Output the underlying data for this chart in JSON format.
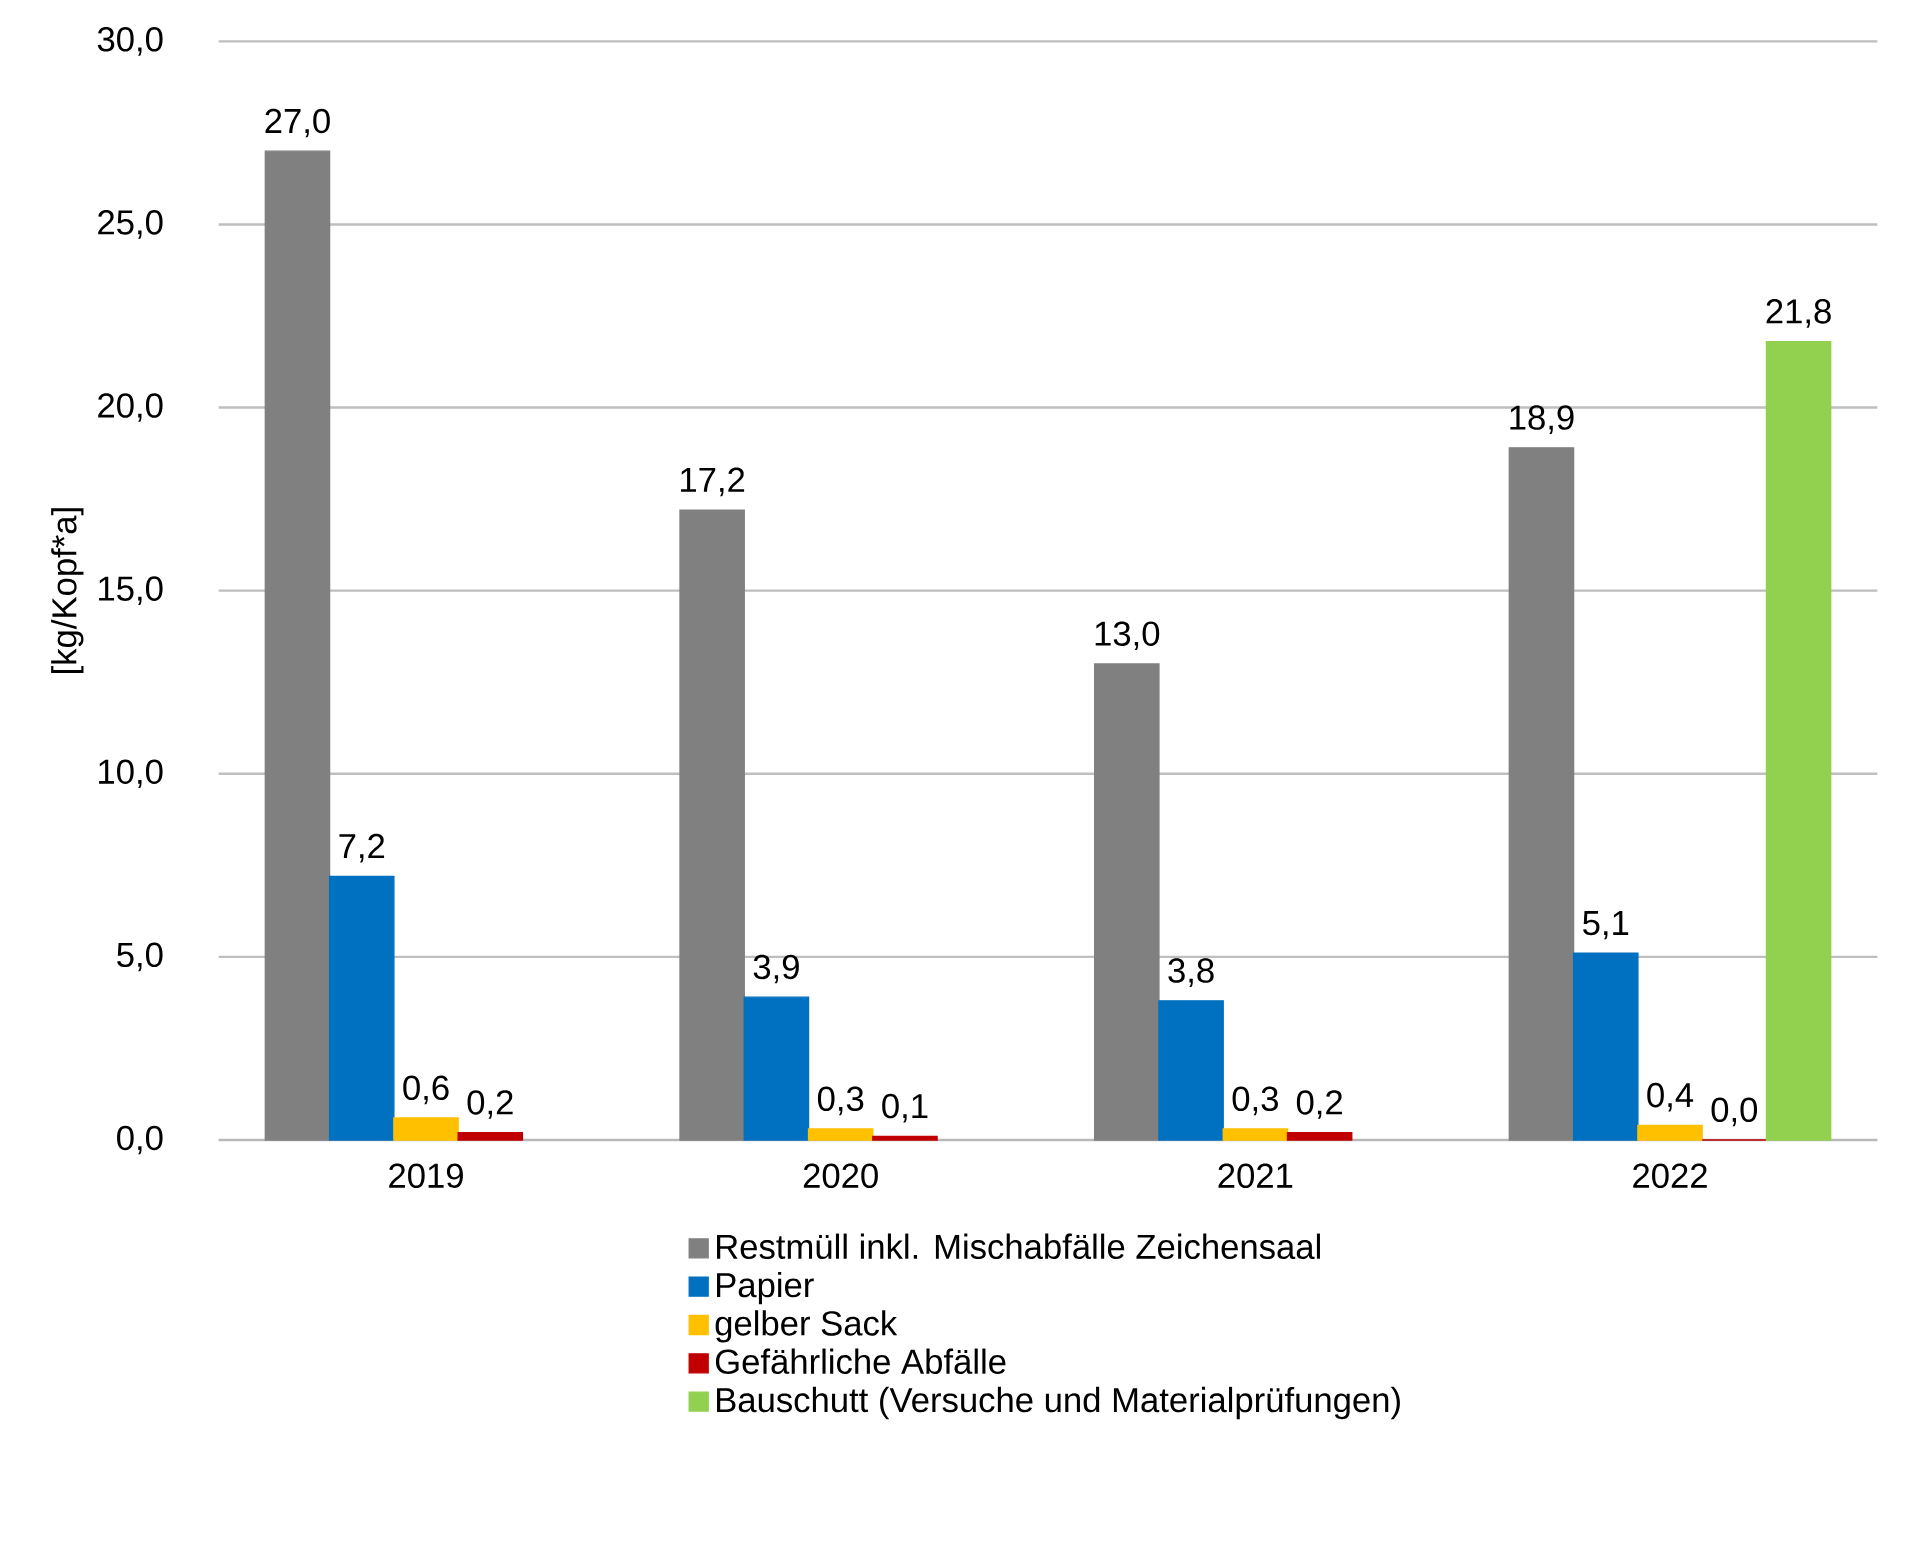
{
  "chart_data": {
    "type": "bar",
    "ylabel": "[kg/Kopf*a]",
    "categories": [
      "2019",
      "2020",
      "2021",
      "2022"
    ],
    "series": [
      {
        "name": "Restmüll  inkl. Mischabfälle Zeichensaal",
        "color": "#808080",
        "values": [
          27.0,
          17.2,
          13.0,
          18.9
        ],
        "value_labels": [
          "27,0",
          "17,2",
          "13,0",
          "18,9"
        ]
      },
      {
        "name": "Papier",
        "color": "#0070c0",
        "values": [
          7.2,
          3.9,
          3.8,
          5.1
        ],
        "value_labels": [
          "7,2",
          "3,9",
          "3,8",
          "5,1"
        ]
      },
      {
        "name": "gelber Sack",
        "color": "#ffc000",
        "values": [
          0.6,
          0.3,
          0.3,
          0.4
        ],
        "value_labels": [
          "0,6",
          "0,3",
          "0,3",
          "0,4"
        ]
      },
      {
        "name": "Gefährliche Abfälle",
        "color": "#c00000",
        "values": [
          0.2,
          0.1,
          0.2,
          0.0
        ],
        "value_labels": [
          "0,2",
          "0,1",
          "0,2",
          "0,0"
        ]
      },
      {
        "name": "Bauschutt (Versuche und Materialprüfungen)",
        "color": "#92d050",
        "values": [
          null,
          null,
          null,
          21.8
        ],
        "value_labels": [
          null,
          null,
          null,
          "21,8"
        ]
      }
    ],
    "ylim": [
      0,
      30
    ],
    "yticks": [
      {
        "value": 0,
        "label": "0,0"
      },
      {
        "value": 5,
        "label": "5,0"
      },
      {
        "value": 10,
        "label": "10,0"
      },
      {
        "value": 15,
        "label": "15,0"
      },
      {
        "value": 20,
        "label": "20,0"
      },
      {
        "value": 25,
        "label": "25,0"
      },
      {
        "value": 30,
        "label": "30,0"
      }
    ],
    "grid": "y",
    "legend": "bottom"
  }
}
